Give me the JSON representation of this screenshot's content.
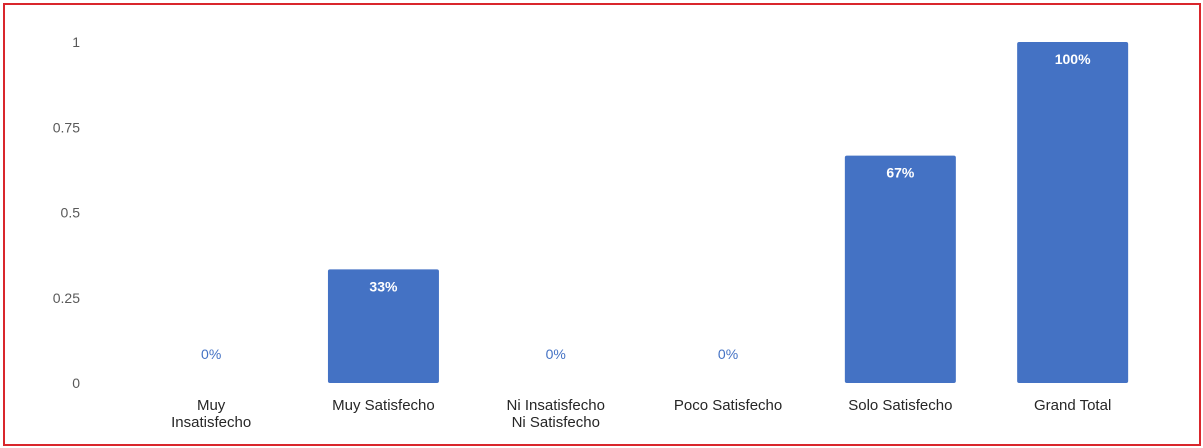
{
  "chart_data": {
    "type": "bar",
    "categories": [
      [
        "Muy",
        "Insatisfecho"
      ],
      [
        "Muy Satisfecho"
      ],
      [
        "Ni Insatisfecho",
        "Ni Satisfecho"
      ],
      [
        "Poco Satisfecho"
      ],
      [
        "Solo Satisfecho"
      ],
      [
        "Grand Total"
      ]
    ],
    "values": [
      0,
      0.3333,
      0,
      0,
      0.6667,
      1
    ],
    "data_labels": [
      "0%",
      "33%",
      "0%",
      "0%",
      "67%",
      "100%"
    ],
    "y_ticks": [
      "0",
      "0.25",
      "0.5",
      "0.75",
      "1"
    ],
    "ylim": [
      0,
      1
    ],
    "bar_color": "#4472c4",
    "frame_color": "#d9262c",
    "grid": false,
    "legend": "none"
  }
}
